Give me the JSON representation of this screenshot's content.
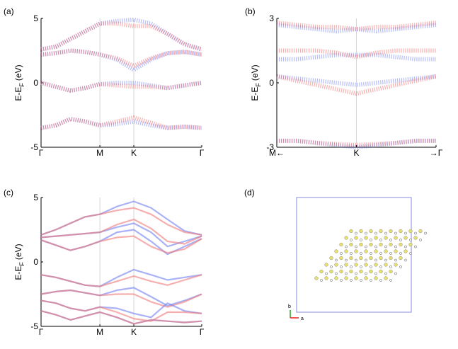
{
  "chart_data": [
    {
      "type": "fatband",
      "label": "(a)",
      "ylabel": "E-E",
      "ylabel_sub": "F",
      "ylabel_unit": "(eV)",
      "x": [
        0,
        0.25,
        0.5,
        0.75,
        1,
        1.29,
        1.577,
        1.87,
        2.15,
        2.44,
        2.732
      ],
      "xlim": [
        0,
        2.732
      ],
      "xticks": [
        {
          "value": 0,
          "label": "Γ"
        },
        {
          "value": 1,
          "label": "M"
        },
        {
          "value": 1.577,
          "label": "K"
        },
        {
          "value": 2.732,
          "label": "Γ"
        }
      ],
      "ylim": [
        -5,
        5
      ],
      "yticks": [
        -5,
        0,
        5
      ],
      "series": [
        {
          "color": "#5a6cf0",
          "values": [
            2.6,
            2.8,
            3.4,
            4.0,
            4.6,
            4.8,
            4.9,
            4.6,
            3.8,
            3.0,
            2.6
          ]
        },
        {
          "color": "#f05050",
          "values": [
            2.6,
            2.8,
            3.4,
            4.0,
            4.6,
            4.6,
            4.4,
            4.4,
            3.8,
            3.0,
            2.6
          ]
        },
        {
          "color": "#5a6cf0",
          "values": [
            2.2,
            2.3,
            2.5,
            2.4,
            2.2,
            1.8,
            1.0,
            1.8,
            2.3,
            2.4,
            2.2
          ]
        },
        {
          "color": "#f05050",
          "values": [
            2.2,
            2.3,
            2.5,
            2.4,
            2.2,
            1.9,
            1.3,
            1.9,
            2.3,
            2.4,
            2.2
          ]
        },
        {
          "color": "#5a6cf0",
          "values": [
            0.0,
            -0.3,
            -0.6,
            -0.4,
            -0.1,
            0.0,
            0.0,
            -0.2,
            -0.4,
            -0.2,
            0.0
          ]
        },
        {
          "color": "#f05050",
          "values": [
            0.0,
            -0.3,
            -0.6,
            -0.4,
            -0.1,
            -0.2,
            -0.3,
            -0.3,
            -0.4,
            -0.2,
            0.0
          ]
        },
        {
          "color": "#5a6cf0",
          "values": [
            -3.5,
            -3.3,
            -2.8,
            -3.0,
            -3.3,
            -3.2,
            -3.0,
            -3.3,
            -3.5,
            -3.4,
            -3.5
          ]
        },
        {
          "color": "#f05050",
          "values": [
            -3.5,
            -3.3,
            -2.8,
            -3.0,
            -3.3,
            -3.0,
            -2.7,
            -3.1,
            -3.5,
            -3.4,
            -3.5
          ]
        }
      ]
    },
    {
      "type": "fatband",
      "label": "(b)",
      "ylabel": "E-E",
      "ylabel_sub": "F",
      "ylabel_unit": "(eV)",
      "x": [
        -1,
        -0.75,
        -0.5,
        -0.25,
        0,
        0.25,
        0.5,
        0.75,
        1
      ],
      "xlim": [
        -1,
        1
      ],
      "xticks": [
        {
          "value": -1,
          "label": "M←"
        },
        {
          "value": 0,
          "label": "K"
        },
        {
          "value": 1,
          "label": "→Γ"
        }
      ],
      "ylim": [
        -3,
        3
      ],
      "yticks": [
        -3,
        0,
        3
      ],
      "series": [
        {
          "color": "#5a6cf0",
          "values": [
            0.3,
            0.2,
            0.1,
            0.0,
            -0.1,
            0.0,
            0.1,
            0.2,
            0.3
          ]
        },
        {
          "color": "#f05050",
          "values": [
            0.3,
            0.1,
            -0.1,
            -0.3,
            -0.5,
            -0.3,
            -0.1,
            0.1,
            0.3
          ]
        },
        {
          "color": "#5a6cf0",
          "values": [
            1.1,
            1.1,
            1.2,
            1.3,
            1.3,
            1.3,
            1.2,
            1.1,
            1.1
          ]
        },
        {
          "color": "#f05050",
          "values": [
            1.5,
            1.5,
            1.5,
            1.4,
            1.2,
            1.4,
            1.5,
            1.5,
            1.5
          ]
        },
        {
          "color": "#5a6cf0",
          "values": [
            -2.7,
            -2.7,
            -2.8,
            -2.9,
            -3.0,
            -2.9,
            -2.8,
            -2.7,
            -2.7
          ]
        },
        {
          "color": "#f05050",
          "values": [
            -2.7,
            -2.7,
            -2.8,
            -2.85,
            -2.9,
            -2.85,
            -2.8,
            -2.7,
            -2.7
          ]
        },
        {
          "color": "#5a6cf0",
          "values": [
            2.7,
            2.6,
            2.5,
            2.4,
            2.5,
            2.4,
            2.5,
            2.6,
            2.7
          ]
        },
        {
          "color": "#f05050",
          "values": [
            2.8,
            2.7,
            2.6,
            2.6,
            2.5,
            2.6,
            2.6,
            2.7,
            2.8
          ]
        }
      ]
    },
    {
      "type": "line",
      "label": "(c)",
      "ylabel": "E-E",
      "ylabel_sub": "F",
      "ylabel_unit": "(eV)",
      "x": [
        0,
        0.25,
        0.5,
        0.75,
        1,
        1.29,
        1.577,
        1.87,
        2.15,
        2.44,
        2.732
      ],
      "xlim": [
        0,
        2.732
      ],
      "xticks": [
        {
          "value": 0,
          "label": "Γ"
        },
        {
          "value": 1,
          "label": "M"
        },
        {
          "value": 1.577,
          "label": "K"
        },
        {
          "value": 2.732,
          "label": "Γ"
        }
      ],
      "ylim": [
        -5,
        5
      ],
      "yticks": [
        -5,
        0,
        5
      ],
      "series": [
        {
          "color": "#6f7ff0",
          "values": [
            2.1,
            2.5,
            3.0,
            3.5,
            3.7,
            4.3,
            4.7,
            4.2,
            3.3,
            2.4,
            2.1
          ]
        },
        {
          "color": "#f07a7a",
          "values": [
            2.1,
            2.5,
            3.0,
            3.5,
            3.7,
            4.0,
            4.2,
            3.7,
            2.9,
            2.3,
            2.1
          ]
        },
        {
          "color": "#6f7ff0",
          "values": [
            1.9,
            2.0,
            2.1,
            2.2,
            2.3,
            2.7,
            3.0,
            2.3,
            1.2,
            1.6,
            2.0
          ]
        },
        {
          "color": "#f07a7a",
          "values": [
            1.9,
            2.0,
            2.1,
            2.2,
            2.3,
            2.9,
            3.3,
            2.6,
            1.6,
            1.4,
            2.0
          ]
        },
        {
          "color": "#6f7ff0",
          "values": [
            1.7,
            1.3,
            0.9,
            1.2,
            1.6,
            2.3,
            2.5,
            1.6,
            0.6,
            1.2,
            1.8
          ]
        },
        {
          "color": "#f07a7a",
          "values": [
            1.7,
            1.3,
            0.9,
            1.2,
            1.6,
            1.9,
            2.0,
            1.2,
            0.7,
            1.0,
            1.8
          ]
        },
        {
          "color": "#6f7ff0",
          "values": [
            -1.0,
            -1.2,
            -1.5,
            -1.8,
            -1.9,
            -1.2,
            -0.6,
            -1.0,
            -1.4,
            -1.2,
            -1.0
          ]
        },
        {
          "color": "#f07a7a",
          "values": [
            -1.0,
            -1.2,
            -1.5,
            -1.8,
            -1.9,
            -1.5,
            -1.1,
            -1.5,
            -1.8,
            -1.4,
            -1.0
          ]
        },
        {
          "color": "#6f7ff0",
          "values": [
            -2.5,
            -2.3,
            -2.2,
            -2.4,
            -2.6,
            -2.2,
            -2.0,
            -2.7,
            -3.4,
            -3.0,
            -2.5
          ]
        },
        {
          "color": "#f07a7a",
          "values": [
            -2.5,
            -2.3,
            -2.2,
            -2.4,
            -2.6,
            -2.5,
            -2.5,
            -3.1,
            -3.5,
            -3.1,
            -2.5
          ]
        },
        {
          "color": "#6f7ff0",
          "values": [
            -3.0,
            -3.2,
            -3.6,
            -3.8,
            -3.5,
            -3.6,
            -4.0,
            -4.3,
            -3.2,
            -3.8,
            -4.0
          ]
        },
        {
          "color": "#f07a7a",
          "values": [
            -3.0,
            -3.2,
            -3.6,
            -3.8,
            -3.5,
            -3.9,
            -4.4,
            -4.6,
            -3.9,
            -3.9,
            -4.0
          ]
        },
        {
          "color": "#6f7ff0",
          "values": [
            -3.8,
            -4.1,
            -4.5,
            -4.2,
            -3.9,
            -4.3,
            -4.8,
            -4.5,
            -4.6,
            -4.7,
            -4.6
          ]
        },
        {
          "color": "#f07a7a",
          "values": [
            -3.8,
            -4.1,
            -4.5,
            -4.2,
            -3.9,
            -4.3,
            -4.8,
            -4.5,
            -4.6,
            -4.7,
            -4.6
          ]
        }
      ]
    }
  ],
  "structure": {
    "label": "(d)",
    "axis_b": "b",
    "axis_a": "a"
  }
}
